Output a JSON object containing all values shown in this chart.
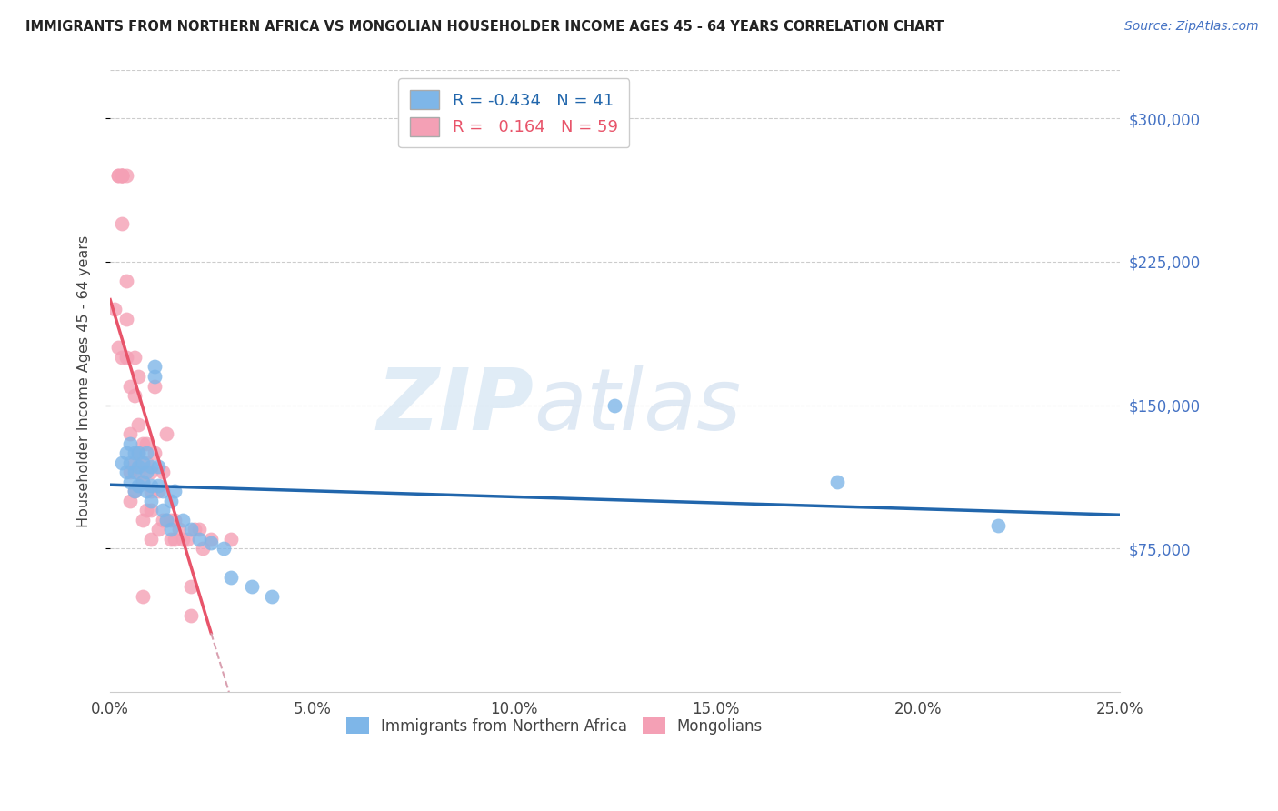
{
  "title": "IMMIGRANTS FROM NORTHERN AFRICA VS MONGOLIAN HOUSEHOLDER INCOME AGES 45 - 64 YEARS CORRELATION CHART",
  "source": "Source: ZipAtlas.com",
  "ylabel": "Householder Income Ages 45 - 64 years",
  "xlabel_ticks": [
    "0.0%",
    "5.0%",
    "10.0%",
    "15.0%",
    "20.0%",
    "25.0%"
  ],
  "xlabel_vals": [
    0.0,
    0.05,
    0.1,
    0.15,
    0.2,
    0.25
  ],
  "ylabel_ticks": [
    "$75,000",
    "$150,000",
    "$225,000",
    "$300,000"
  ],
  "ylabel_vals": [
    75000,
    150000,
    225000,
    300000
  ],
  "xlim": [
    0.0,
    0.25
  ],
  "ylim": [
    0,
    325000
  ],
  "ymax_line": 325000,
  "blue_R": -0.434,
  "blue_N": 41,
  "pink_R": 0.164,
  "pink_N": 59,
  "blue_color": "#7eb6e8",
  "pink_color": "#f4a0b5",
  "blue_line_color": "#2166ac",
  "pink_line_color": "#e8546a",
  "pink_dashed_color": "#d9a0b0",
  "watermark_zip": "ZIP",
  "watermark_atlas": "atlas",
  "blue_scatter_x": [
    0.003,
    0.004,
    0.004,
    0.005,
    0.005,
    0.005,
    0.006,
    0.006,
    0.006,
    0.007,
    0.007,
    0.007,
    0.008,
    0.008,
    0.009,
    0.009,
    0.009,
    0.01,
    0.01,
    0.01,
    0.011,
    0.011,
    0.012,
    0.012,
    0.013,
    0.013,
    0.014,
    0.015,
    0.015,
    0.016,
    0.018,
    0.02,
    0.022,
    0.025,
    0.028,
    0.03,
    0.035,
    0.04,
    0.125,
    0.18,
    0.22
  ],
  "blue_scatter_y": [
    120000,
    125000,
    115000,
    110000,
    120000,
    130000,
    105000,
    115000,
    125000,
    118000,
    108000,
    125000,
    110000,
    120000,
    105000,
    115000,
    125000,
    100000,
    108000,
    118000,
    165000,
    170000,
    108000,
    118000,
    95000,
    105000,
    90000,
    100000,
    85000,
    105000,
    90000,
    85000,
    80000,
    78000,
    75000,
    60000,
    55000,
    50000,
    150000,
    110000,
    87000
  ],
  "pink_scatter_x": [
    0.001,
    0.002,
    0.002,
    0.003,
    0.003,
    0.003,
    0.003,
    0.004,
    0.004,
    0.005,
    0.005,
    0.005,
    0.006,
    0.006,
    0.006,
    0.007,
    0.007,
    0.007,
    0.008,
    0.008,
    0.008,
    0.009,
    0.009,
    0.009,
    0.01,
    0.01,
    0.01,
    0.01,
    0.011,
    0.011,
    0.012,
    0.012,
    0.013,
    0.013,
    0.014,
    0.014,
    0.015,
    0.015,
    0.016,
    0.016,
    0.017,
    0.018,
    0.019,
    0.02,
    0.02,
    0.021,
    0.022,
    0.023,
    0.025,
    0.03,
    0.002,
    0.003,
    0.003,
    0.004,
    0.004,
    0.005,
    0.006,
    0.007,
    0.008
  ],
  "pink_scatter_y": [
    200000,
    270000,
    270000,
    270000,
    270000,
    270000,
    245000,
    195000,
    215000,
    135000,
    115000,
    100000,
    120000,
    105000,
    175000,
    115000,
    125000,
    140000,
    90000,
    110000,
    130000,
    95000,
    120000,
    130000,
    80000,
    95000,
    105000,
    115000,
    125000,
    160000,
    85000,
    105000,
    115000,
    90000,
    135000,
    90000,
    80000,
    90000,
    80000,
    90000,
    85000,
    80000,
    80000,
    40000,
    55000,
    85000,
    85000,
    75000,
    80000,
    80000,
    180000,
    175000,
    270000,
    270000,
    175000,
    160000,
    155000,
    165000,
    50000
  ]
}
